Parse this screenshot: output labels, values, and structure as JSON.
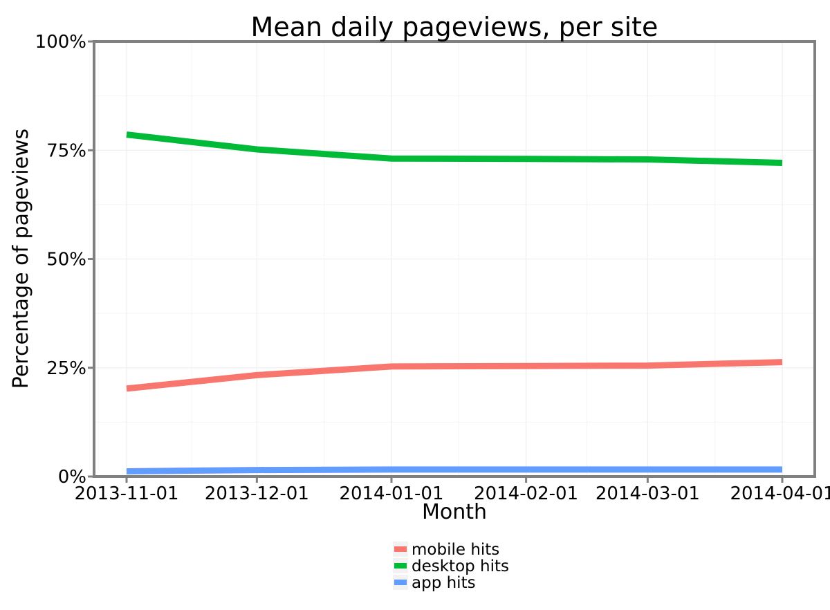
{
  "chart_data": {
    "type": "line",
    "title": "Mean daily pageviews, per site",
    "xlabel": "Month",
    "ylabel": "Percentage of pageviews",
    "x": [
      "2013-11-01",
      "2013-12-01",
      "2014-01-01",
      "2014-02-01",
      "2014-03-01",
      "2014-04-01"
    ],
    "x_tick_labels": [
      "2013-11-01",
      "2013-12-01",
      "2014-01-01",
      "2014-02-01",
      "2014-03-01",
      "2014-04-01"
    ],
    "x_range": [
      "2013-11-01",
      "2014-04-01"
    ],
    "y_tick_labels": [
      "0%",
      "25%",
      "50%",
      "75%",
      "100%"
    ],
    "ylim": [
      0,
      100
    ],
    "grid": true,
    "legend_position": "bottom",
    "series": [
      {
        "name": "mobile hits",
        "color": "#F8766D",
        "values": [
          20.2,
          23.3,
          25.3,
          25.4,
          25.5,
          26.3
        ]
      },
      {
        "name": "desktop hits",
        "color": "#00BA38",
        "values": [
          78.6,
          75.2,
          73.1,
          73.0,
          72.9,
          72.1
        ]
      },
      {
        "name": "app hits",
        "color": "#619CFF",
        "values": [
          1.2,
          1.5,
          1.6,
          1.6,
          1.6,
          1.6
        ]
      }
    ]
  }
}
